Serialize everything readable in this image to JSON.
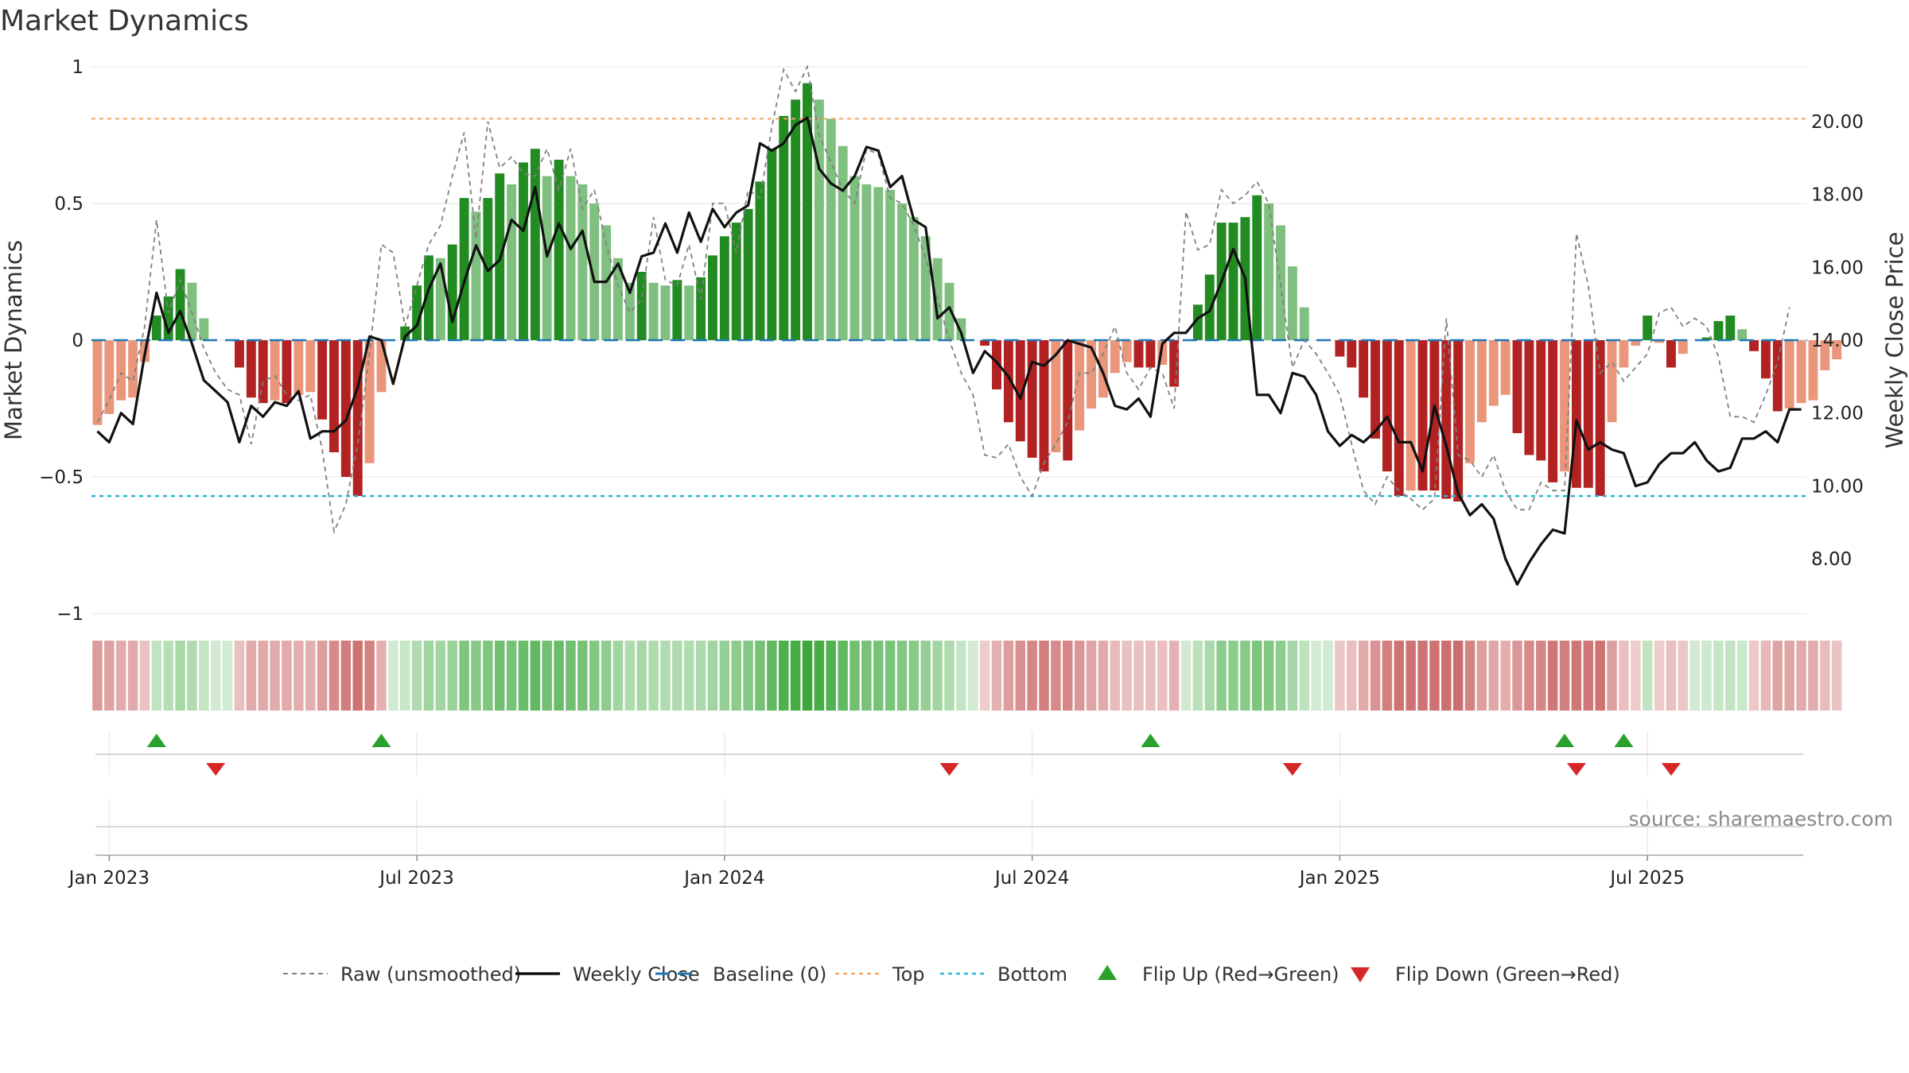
{
  "chart_data": {
    "type": "bar",
    "title": "Market Dynamics",
    "ylabel_left": "Market Dynamics",
    "ylabel_right": "Weekly Close Price",
    "ylim_left": [
      -1,
      1
    ],
    "ylim_right": [
      6.5,
      21.5
    ],
    "left_ticks": [
      {
        "value": 1,
        "label": "1"
      },
      {
        "value": 0.5,
        "label": "0.5"
      },
      {
        "value": 0,
        "label": "0"
      },
      {
        "value": -0.5,
        "label": "−0.5"
      },
      {
        "value": -1,
        "label": "−1"
      }
    ],
    "right_ticks": [
      {
        "value": 20,
        "label": "20.00"
      },
      {
        "value": 18,
        "label": "18.00"
      },
      {
        "value": 16,
        "label": "16.00"
      },
      {
        "value": 14,
        "label": "14.00"
      },
      {
        "value": 12,
        "label": "12.00"
      },
      {
        "value": 10,
        "label": "10.00"
      },
      {
        "value": 8,
        "label": "8.00"
      }
    ],
    "x_ticks": [
      {
        "week": 1,
        "label": "Jan 2023"
      },
      {
        "week": 27,
        "label": "Jul 2023"
      },
      {
        "week": 53,
        "label": "Jan 2024"
      },
      {
        "week": 79,
        "label": "Jul 2024"
      },
      {
        "week": 105,
        "label": "Jan 2025"
      },
      {
        "week": 131,
        "label": "Jul 2025"
      }
    ],
    "grid": true,
    "top_level": 0.81,
    "bottom_level": -0.57,
    "baseline": 0,
    "colors": {
      "strong_green": "#228b22",
      "light_green": "#7fbf7f",
      "strong_red": "#b22222",
      "light_red": "#e9967a",
      "raw": "#808080",
      "close": "#111111",
      "baseline": "#1f77b4",
      "top": "#f4a460",
      "bottom": "#2bb5d8",
      "flip_up": "#2ca02c",
      "flip_down": "#d62728"
    },
    "weeks": 145,
    "dynamics": [
      -0.31,
      -0.27,
      -0.22,
      -0.21,
      -0.08,
      0.09,
      0.16,
      0.26,
      0.21,
      0.08,
      0,
      0,
      -0.1,
      -0.21,
      -0.23,
      -0.22,
      -0.23,
      -0.2,
      -0.19,
      -0.29,
      -0.41,
      -0.5,
      -0.57,
      -0.45,
      -0.19,
      0,
      0.05,
      0.2,
      0.31,
      0.3,
      0.35,
      0.52,
      0.47,
      0.52,
      0.61,
      0.57,
      0.65,
      0.7,
      0.6,
      0.66,
      0.6,
      0.57,
      0.5,
      0.42,
      0.3,
      0.21,
      0.25,
      0.21,
      0.2,
      0.22,
      0.2,
      0.23,
      0.31,
      0.38,
      0.43,
      0.48,
      0.58,
      0.7,
      0.82,
      0.88,
      0.94,
      0.88,
      0.81,
      0.71,
      0.6,
      0.57,
      0.56,
      0.55,
      0.5,
      0.45,
      0.38,
      0.3,
      0.21,
      0.08,
      0,
      -0.02,
      -0.18,
      -0.3,
      -0.37,
      -0.43,
      -0.48,
      -0.41,
      -0.44,
      -0.33,
      -0.25,
      -0.21,
      -0.12,
      -0.08,
      -0.1,
      -0.1,
      -0.09,
      -0.17,
      0,
      0.13,
      0.24,
      0.43,
      0.43,
      0.45,
      0.53,
      0.5,
      0.42,
      0.27,
      0.12,
      0,
      0,
      -0.06,
      -0.1,
      -0.21,
      -0.36,
      -0.48,
      -0.57,
      -0.55,
      -0.55,
      -0.55,
      -0.58,
      -0.59,
      -0.45,
      -0.3,
      -0.24,
      -0.2,
      -0.34,
      -0.42,
      -0.44,
      -0.52,
      -0.48,
      -0.54,
      -0.54,
      -0.57,
      -0.3,
      -0.1,
      -0.02,
      0.09,
      -0.01,
      -0.1,
      -0.05,
      0,
      0.01,
      0.07,
      0.09,
      0.04,
      -0.04,
      -0.14,
      -0.26,
      -0.25,
      -0.23,
      -0.22,
      -0.11,
      -0.07
    ],
    "raw": [
      -0.3,
      -0.22,
      -0.12,
      -0.15,
      0.05,
      0.44,
      0.1,
      0.22,
      0.1,
      -0.03,
      -0.12,
      -0.18,
      -0.2,
      -0.38,
      -0.15,
      -0.13,
      -0.2,
      -0.22,
      -0.2,
      -0.4,
      -0.7,
      -0.6,
      -0.38,
      -0.05,
      0.35,
      0.32,
      0.05,
      0.2,
      0.35,
      0.42,
      0.6,
      0.76,
      0.37,
      0.8,
      0.63,
      0.67,
      0.61,
      0.6,
      0.7,
      0.55,
      0.7,
      0.48,
      0.55,
      0.35,
      0.2,
      0.1,
      0.15,
      0.45,
      0.22,
      0.2,
      0.35,
      0.15,
      0.5,
      0.5,
      0.32,
      0.55,
      0.52,
      0.78,
      0.99,
      0.91,
      1.0,
      0.75,
      0.65,
      0.55,
      0.5,
      0.7,
      0.68,
      0.52,
      0.5,
      0.42,
      0.3,
      0.15,
      0.0,
      -0.12,
      -0.2,
      -0.42,
      -0.43,
      -0.38,
      -0.5,
      -0.57,
      -0.45,
      -0.38,
      -0.3,
      -0.12,
      -0.12,
      -0.05,
      0.05,
      -0.12,
      -0.18,
      -0.1,
      -0.12,
      -0.25,
      0.47,
      0.33,
      0.35,
      0.55,
      0.5,
      0.53,
      0.58,
      0.5,
      0.2,
      -0.1,
      0.0,
      -0.05,
      -0.12,
      -0.2,
      -0.38,
      -0.55,
      -0.6,
      -0.5,
      -0.55,
      -0.58,
      -0.62,
      -0.58,
      0.08,
      -0.42,
      -0.44,
      -0.5,
      -0.42,
      -0.55,
      -0.62,
      -0.62,
      -0.52,
      -0.55,
      -0.55,
      0.39,
      0.2,
      -0.12,
      -0.08,
      -0.15,
      -0.1,
      -0.05,
      0.1,
      0.12,
      0.05,
      0.08,
      0.05,
      -0.06,
      -0.28,
      -0.28,
      -0.3,
      -0.2,
      -0.08,
      0.12
    ],
    "close": [
      11.5,
      11.2,
      12.0,
      11.7,
      13.6,
      15.3,
      14.2,
      14.8,
      13.9,
      12.9,
      12.6,
      12.3,
      11.2,
      12.2,
      11.9,
      12.3,
      12.2,
      12.6,
      11.3,
      11.5,
      11.5,
      11.8,
      12.7,
      14.1,
      14.0,
      12.8,
      14.1,
      14.4,
      15.4,
      16.1,
      14.5,
      15.6,
      16.6,
      15.9,
      16.2,
      17.3,
      17.0,
      18.2,
      16.3,
      17.2,
      16.5,
      17.0,
      15.6,
      15.6,
      16.1,
      15.3,
      16.3,
      16.4,
      17.2,
      16.4,
      17.5,
      16.7,
      17.6,
      17.1,
      17.5,
      17.7,
      19.4,
      19.2,
      19.4,
      19.9,
      20.1,
      18.7,
      18.3,
      18.1,
      18.5,
      19.3,
      19.2,
      18.2,
      18.5,
      17.3,
      17.1,
      14.6,
      14.9,
      14.2,
      13.1,
      13.7,
      13.4,
      13.0,
      12.4,
      13.4,
      13.3,
      13.6,
      14.0,
      13.9,
      13.8,
      13.1,
      12.2,
      12.1,
      12.4,
      11.9,
      13.9,
      14.2,
      14.2,
      14.6,
      14.8,
      15.6,
      16.5,
      15.7,
      12.5,
      12.5,
      12.0,
      13.1,
      13.0,
      12.5,
      11.5,
      11.1,
      11.4,
      11.2,
      11.5,
      11.9,
      11.2,
      11.2,
      10.4,
      12.2,
      11.1,
      9.8,
      9.2,
      9.5,
      9.1,
      8.0,
      7.3,
      7.9,
      8.4,
      8.8,
      8.7,
      11.8,
      11.0,
      11.2,
      11.0,
      10.9,
      10.0,
      10.1,
      10.6,
      10.9,
      10.9,
      11.2,
      10.7,
      10.4,
      10.5,
      11.3,
      11.3,
      11.5,
      11.2,
      12.1,
      12.1
    ],
    "flip_up_weeks": [
      5,
      24,
      89,
      124,
      129
    ],
    "flip_down_weeks": [
      10,
      72,
      101,
      125,
      133
    ],
    "legend": [
      {
        "key": "raw",
        "label": "Raw (unsmoothed)"
      },
      {
        "key": "close",
        "label": "Weekly Close"
      },
      {
        "key": "baseline",
        "label": "Baseline (0)"
      },
      {
        "key": "top",
        "label": "Top"
      },
      {
        "key": "bottom",
        "label": "Bottom"
      },
      {
        "key": "flip_up",
        "label": "Flip Up (Red→Green)"
      },
      {
        "key": "flip_down",
        "label": "Flip Down (Green→Red)"
      }
    ],
    "source": "source: sharemaestro.com"
  }
}
